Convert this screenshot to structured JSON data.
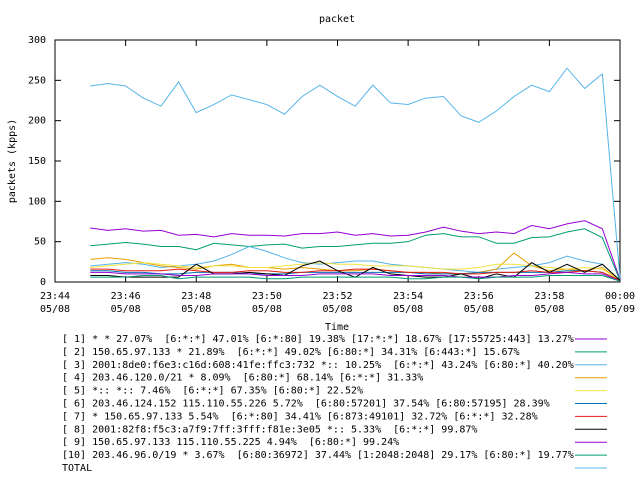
{
  "chart_data": {
    "type": "line",
    "title": "packet",
    "ylabel": "packets (kpps)",
    "xlabel": "Time",
    "x": [
      1,
      1.5,
      2,
      2.5,
      3,
      3.5,
      4,
      4.5,
      5,
      5.5,
      6,
      6.5,
      7,
      7.5,
      8,
      8.5,
      9,
      9.5,
      10,
      10.5,
      11,
      11.5,
      12,
      12.5,
      13,
      13.5,
      14,
      14.5,
      15,
      15.5,
      16
    ],
    "xlim": [
      0,
      16
    ],
    "xticks": [
      {
        "value": 0,
        "label": "23:44\n05/08"
      },
      {
        "value": 2,
        "label": "23:46\n05/08"
      },
      {
        "value": 4,
        "label": "23:48\n05/08"
      },
      {
        "value": 6,
        "label": "23:50\n05/08"
      },
      {
        "value": 8,
        "label": "23:52\n05/08"
      },
      {
        "value": 10,
        "label": "23:54\n05/08"
      },
      {
        "value": 12,
        "label": "23:56\n05/08"
      },
      {
        "value": 14,
        "label": "23:58\n05/08"
      },
      {
        "value": 16,
        "label": "00:00\n05/09"
      }
    ],
    "ylim": [
      0,
      300
    ],
    "yticks": [
      0,
      50,
      100,
      150,
      200,
      250,
      300
    ],
    "grid": false,
    "series": [
      {
        "name": "[ 1] * * 27.07%  [6:*:*] 47.01% [6:*:80] 19.38% [17:*:*] 18.67% [17:55725:443] 13.27%",
        "color": "#9400d3",
        "values": [
          67,
          64,
          66,
          63,
          64,
          58,
          59,
          56,
          60,
          58,
          58,
          57,
          60,
          60,
          62,
          58,
          60,
          57,
          58,
          62,
          68,
          63,
          60,
          62,
          60,
          70,
          66,
          72,
          76,
          66,
          3
        ]
      },
      {
        "name": "[ 2] 150.65.97.133 * 21.89%  [6:*:*] 49.02% [6:80:*] 34.31% [6:443:*] 15.67%",
        "color": "#009e73",
        "values": [
          45,
          47,
          49,
          47,
          44,
          44,
          40,
          48,
          46,
          44,
          46,
          47,
          42,
          44,
          44,
          46,
          48,
          48,
          50,
          58,
          60,
          56,
          56,
          48,
          48,
          55,
          56,
          62,
          66,
          55,
          2
        ]
      },
      {
        "name": "[ 3] 2001:8de0:f6e3:c16d:608:41fe:ffc3:732 *:: 10.25%  [6:*:*] 43.24% [6:80:*] 40.20%",
        "color": "#56b4e9",
        "values": [
          20,
          22,
          24,
          22,
          18,
          20,
          22,
          26,
          34,
          44,
          38,
          30,
          24,
          22,
          24,
          26,
          26,
          22,
          20,
          18,
          16,
          14,
          12,
          16,
          18,
          20,
          24,
          32,
          26,
          22,
          2
        ]
      },
      {
        "name": "[ 4] 203.46.120.0/21 * 8.09%  [6:80:*] 68.14% [6:*:*] 31.33%",
        "color": "#e69f00",
        "values": [
          28,
          30,
          28,
          24,
          20,
          18,
          16,
          20,
          22,
          18,
          18,
          16,
          18,
          16,
          14,
          14,
          16,
          14,
          12,
          12,
          10,
          10,
          12,
          16,
          36,
          20,
          14,
          16,
          14,
          18,
          2
        ]
      },
      {
        "name": "[ 5] *:: *:: 7.46%  [6:*:*] 67.35% [6:80:*] 22.52%",
        "color": "#f0e442",
        "values": [
          18,
          20,
          22,
          24,
          22,
          20,
          18,
          20,
          20,
          18,
          18,
          20,
          22,
          24,
          22,
          22,
          20,
          20,
          20,
          18,
          16,
          16,
          18,
          22,
          22,
          20,
          18,
          16,
          18,
          16,
          2
        ]
      },
      {
        "name": "[ 6] 203.46.124.152 115.110.55.226 5.72%  [6:80:57201] 37.54% [6:80:57195] 28.39%",
        "color": "#0072b2",
        "values": [
          14,
          14,
          12,
          12,
          10,
          10,
          12,
          12,
          12,
          10,
          10,
          10,
          12,
          12,
          12,
          12,
          12,
          12,
          12,
          10,
          10,
          10,
          12,
          12,
          12,
          12,
          12,
          14,
          14,
          12,
          2
        ]
      },
      {
        "name": "[ 7] * 150.65.97.133 5.54%  [6:*:80] 34.41% [6:873:49101] 32.72% [6:*:*] 32.28%",
        "color": "#e51e10",
        "values": [
          16,
          16,
          14,
          14,
          14,
          16,
          14,
          12,
          12,
          14,
          14,
          12,
          12,
          14,
          14,
          16,
          16,
          14,
          12,
          12,
          12,
          10,
          10,
          12,
          12,
          14,
          12,
          12,
          14,
          12,
          2
        ]
      },
      {
        "name": "[ 8] 2001:82f8:f5c3:a7f9:7ff:3fff:f81e:3e05 *:: 5.33%  [6:*:*] 99.87%",
        "color": "#000000",
        "values": [
          8,
          8,
          6,
          6,
          6,
          6,
          22,
          10,
          10,
          12,
          10,
          8,
          20,
          26,
          14,
          6,
          18,
          10,
          8,
          6,
          6,
          10,
          4,
          10,
          6,
          24,
          12,
          22,
          12,
          22,
          2
        ]
      },
      {
        "name": "[ 9] 150.65.97.133 115.110.55.225 4.94%  [6:80:*] 99.24%",
        "color": "#9400d3",
        "values": [
          12,
          12,
          10,
          10,
          10,
          8,
          8,
          10,
          10,
          10,
          8,
          8,
          8,
          10,
          10,
          10,
          10,
          8,
          8,
          8,
          8,
          6,
          6,
          6,
          8,
          8,
          10,
          12,
          10,
          10,
          1
        ]
      },
      {
        "name": "[10] 203.46.96.0/19 * 3.67%  [6:80:36972] 37.44% [1:2048:2048] 29.17% [6:80:*] 19.77%",
        "color": "#009e73",
        "values": [
          6,
          6,
          6,
          8,
          8,
          4,
          6,
          6,
          6,
          6,
          4,
          4,
          6,
          6,
          6,
          6,
          6,
          6,
          4,
          4,
          6,
          6,
          4,
          6,
          6,
          6,
          8,
          8,
          8,
          8,
          1
        ]
      },
      {
        "name": "TOTAL",
        "color": "#56b4e9",
        "values": [
          243,
          246,
          243,
          228,
          218,
          248,
          210,
          220,
          232,
          226,
          220,
          208,
          230,
          244,
          230,
          218,
          244,
          222,
          220,
          228,
          230,
          206,
          198,
          212,
          230,
          244,
          236,
          265,
          240,
          258,
          5
        ]
      }
    ]
  }
}
